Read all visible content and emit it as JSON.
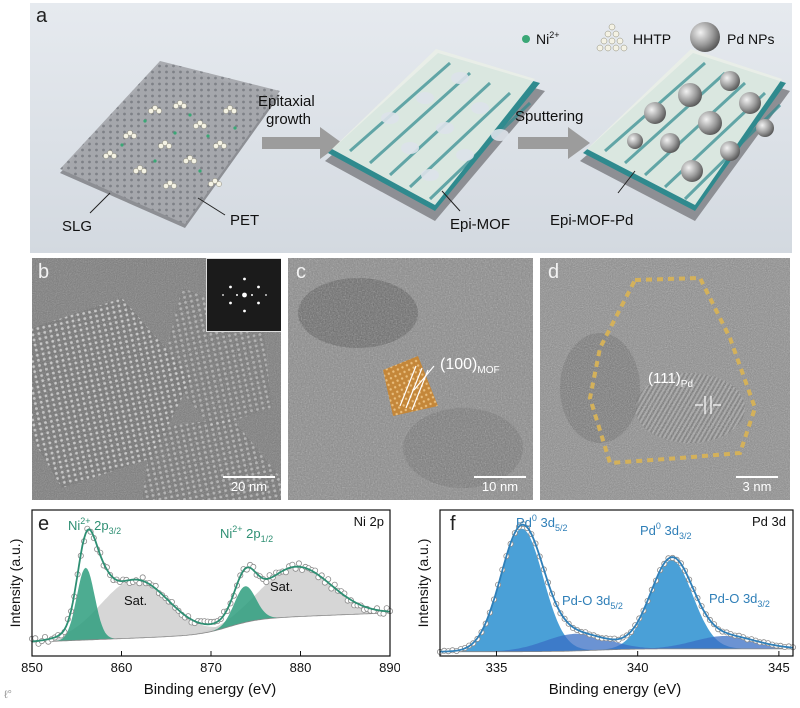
{
  "panel_a": {
    "label": "a",
    "legend": {
      "ni": "Ni",
      "ni_sup": "2+",
      "hhtp": "HHTP",
      "pd": "Pd NPs"
    },
    "arrow1": [
      "Epitaxial",
      "growth"
    ],
    "arrow2": "Sputtering",
    "labels": {
      "slg": "SLG",
      "pet": "PET",
      "epi_mof": "Epi-MOF",
      "epi_mof_pd": "Epi-MOF-Pd"
    },
    "colors": {
      "background": "#dde3ea",
      "ni": "#3aa776",
      "mof_teal": "#2f8a8e",
      "substrate": "#8e9095",
      "arrow": "#9c9c9c"
    }
  },
  "panel_b": {
    "label": "b",
    "scale": "20 nm"
  },
  "panel_c": {
    "label": "c",
    "plane": "(100)",
    "plane_sub": "MOF",
    "scale": "10 nm"
  },
  "panel_d": {
    "label": "d",
    "plane": "(111)",
    "plane_sub": "Pd",
    "scale": "3 nm"
  },
  "panel_e": {
    "label": "e",
    "corner": "Ni 2p",
    "peak1": {
      "main": "Ni",
      "sup": "2+",
      "rest": " 2p",
      "sub": "3/2"
    },
    "peak2": {
      "main": "Ni",
      "sup": "2+",
      "rest": " 2p",
      "sub": "1/2"
    },
    "sat": "Sat.",
    "xlabel": "Binding energy (eV)",
    "ylabel": "Intensity (a.u.)",
    "colors": {
      "fit": "#2e8f73",
      "peak": "#2e9e7e",
      "sat": "#cfcfcf"
    }
  },
  "panel_f": {
    "label": "f",
    "corner": "Pd 3d",
    "peak1": {
      "main": "Pd",
      "sup": "0",
      "rest": " 3d",
      "sub": "5/2"
    },
    "peak2": {
      "main": "Pd",
      "sup": "0",
      "rest": " 3d",
      "sub": "3/2"
    },
    "peak3": {
      "main": "Pd-O 3d",
      "sub": "5/2"
    },
    "peak4": {
      "main": "Pd-O 3d",
      "sub": "3/2"
    },
    "xlabel": "Binding energy (eV)",
    "ylabel": "Intensity (a.u.)",
    "colors": {
      "fit": "#2f7fb8",
      "peak": "#2a8fd0",
      "peak_o": "#3a6fc4"
    }
  },
  "chart_data": [
    {
      "type": "line",
      "panel": "e",
      "xlim": [
        850,
        890
      ],
      "xticks": [
        850,
        860,
        870,
        880,
        890
      ],
      "xlabel": "Binding energy (eV)",
      "ylabel": "Intensity (a.u.)",
      "series": [
        {
          "name": "Ni2+ 2p3/2",
          "peak_x": 856.0
        },
        {
          "name": "Ni2+ 2p1/2",
          "peak_x": 873.8
        },
        {
          "name": "Sat.",
          "peak_x": 861.5
        },
        {
          "name": "Sat.",
          "peak_x": 879.5
        }
      ]
    },
    {
      "type": "line",
      "panel": "f",
      "xlim": [
        333,
        345.5
      ],
      "xticks": [
        335,
        340,
        345
      ],
      "xlabel": "Binding energy (eV)",
      "ylabel": "Intensity (a.u.)",
      "series": [
        {
          "name": "Pd0 3d5/2",
          "peak_x": 335.9
        },
        {
          "name": "Pd0 3d3/2",
          "peak_x": 341.2
        },
        {
          "name": "Pd-O 3d5/2",
          "peak_x": 337.8
        },
        {
          "name": "Pd-O 3d3/2",
          "peak_x": 343.1
        }
      ]
    }
  ]
}
